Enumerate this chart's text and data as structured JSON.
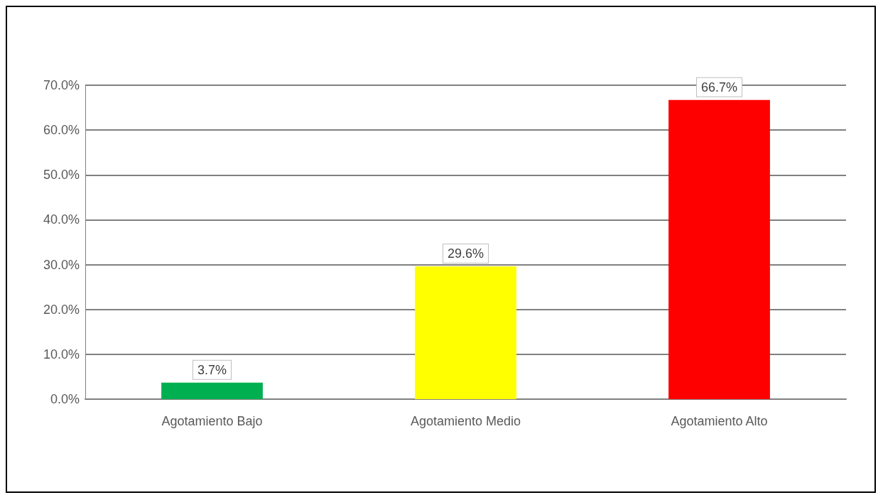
{
  "chart_data": {
    "type": "bar",
    "categories": [
      "Agotamiento Bajo",
      "Agotamiento Medio",
      "Agotamiento Alto"
    ],
    "values": [
      3.7,
      29.6,
      66.7
    ],
    "colors": [
      "#00b050",
      "#ffff00",
      "#ff0000"
    ],
    "value_labels": [
      "3.7%",
      "29.6%",
      "66.7%"
    ],
    "ylim": [
      0,
      70
    ],
    "yticks": [
      {
        "value": 0,
        "label": "0.0%"
      },
      {
        "value": 10,
        "label": "10.0%"
      },
      {
        "value": 20,
        "label": "20.0%"
      },
      {
        "value": 30,
        "label": "30.0%"
      },
      {
        "value": 40,
        "label": "40.0%"
      },
      {
        "value": 50,
        "label": "50.0%"
      },
      {
        "value": 60,
        "label": "60.0%"
      },
      {
        "value": 70,
        "label": "70.0%"
      }
    ],
    "grid": "y"
  }
}
